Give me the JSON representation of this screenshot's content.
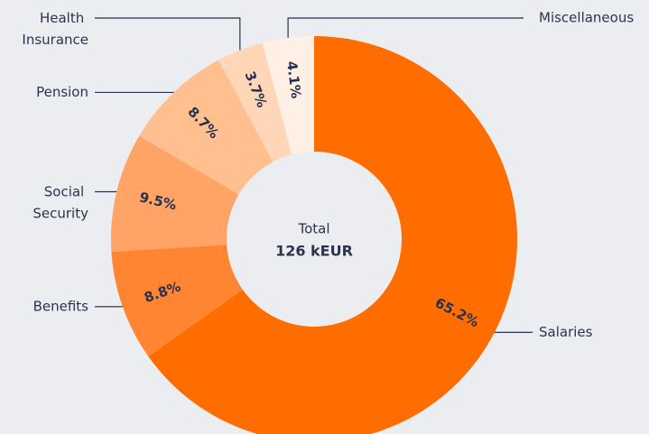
{
  "chart_data": {
    "type": "donut",
    "categories": [
      "Salaries",
      "Benefits",
      "Social Security",
      "Pension",
      "Health Insurance",
      "Miscellaneous"
    ],
    "values": [
      65.2,
      8.8,
      9.5,
      8.7,
      3.7,
      4.1
    ],
    "value_labels": [
      "65.2%",
      "8.8%",
      "9.5%",
      "8.7%",
      "3.7%",
      "4.1%"
    ],
    "colors": [
      "#ff6d00",
      "#ff8533",
      "#ffa366",
      "#ffbf8f",
      "#ffd6b8",
      "#fff0e6"
    ],
    "center_label": "Total",
    "center_value": "126 kEUR"
  }
}
